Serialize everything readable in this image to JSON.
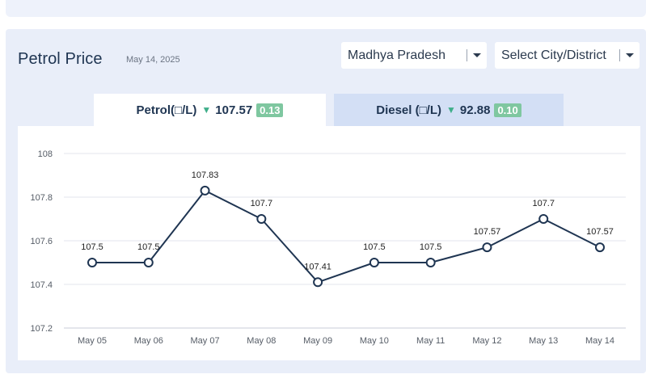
{
  "header": {
    "title": "Petrol Price",
    "date": "May 14, 2025"
  },
  "filters": {
    "state": "Madhya Pradesh",
    "city_placeholder": "Select City/District"
  },
  "tabs": {
    "petrol": {
      "label": "Petrol(□/L)",
      "price": "107.57",
      "change": "0.13",
      "trend": "down"
    },
    "diesel": {
      "label": "Diesel (□/L)",
      "price": "92.88",
      "change": "0.10",
      "trend": "down"
    }
  },
  "colors": {
    "line": "#1f3552",
    "grid": "#e3e6ec",
    "down_arrow": "#3fae8a",
    "change_badge": "#7fc7a0",
    "active_tab": "#ffffff",
    "inactive_tab": "#d3dff5"
  },
  "chart_data": {
    "type": "line",
    "categories": [
      "May 05",
      "May 06",
      "May 07",
      "May 08",
      "May 09",
      "May 10",
      "May 11",
      "May 12",
      "May 13",
      "May 14"
    ],
    "values": [
      107.5,
      107.5,
      107.83,
      107.7,
      107.41,
      107.5,
      107.5,
      107.57,
      107.7,
      107.57
    ],
    "data_labels": [
      "107.5",
      "107.5",
      "107.83",
      "107.7",
      "107.41",
      "107.5",
      "107.5",
      "107.57",
      "107.7",
      "107.57"
    ],
    "yticks": [
      "107.2",
      "107.4",
      "107.6",
      "107.8",
      "108"
    ],
    "ylim": [
      107.2,
      108.0
    ],
    "grid": true,
    "xlabel": "",
    "ylabel": ""
  }
}
